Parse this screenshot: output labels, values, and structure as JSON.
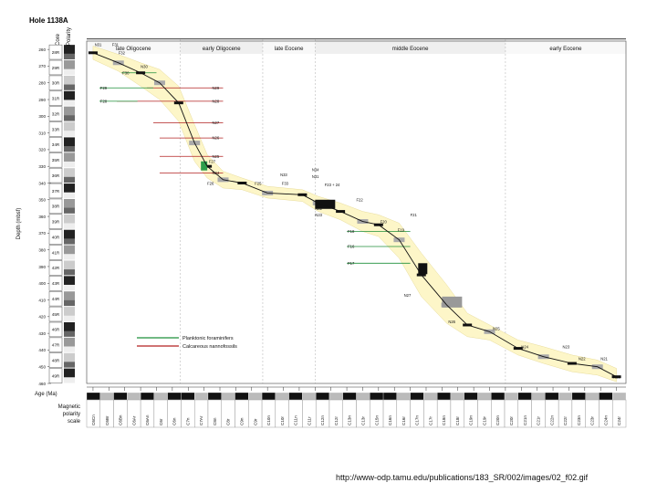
{
  "source_url": "http://www-odp.tamu.edu/publications/183_SR/002/images/02_f02.gif",
  "chart_data": {
    "type": "line",
    "title": "Hole 1138A",
    "xlabel": "Age (Ma)",
    "ylabel": "Depth (mbsf)",
    "xlim": [
      22.6,
      56.6
    ],
    "ylim": [
      460,
      255
    ],
    "grid": false,
    "x_ticks": [
      23,
      24,
      25,
      26,
      27,
      28,
      29,
      30,
      31,
      32,
      33,
      34,
      35,
      36,
      37,
      38,
      39,
      40,
      41,
      42,
      43,
      44,
      45,
      46,
      47,
      48,
      49,
      50,
      51,
      52,
      53,
      54,
      55,
      56
    ],
    "y_ticks": [
      260,
      270,
      280,
      290,
      300,
      310,
      320,
      330,
      340,
      350,
      360,
      370,
      380,
      390,
      400,
      410,
      420,
      430,
      440,
      450,
      460
    ],
    "core_header": "Core",
    "polarity_header": "Polarity",
    "cores": [
      "28R",
      "29R",
      "30R",
      "31R",
      "32R",
      "33R",
      "34R",
      "35R",
      "36R",
      "37R",
      "38R",
      "39R",
      "40R",
      "41R",
      "42R",
      "43R",
      "44R",
      "45R",
      "46R",
      "47R",
      "48R",
      "49R"
    ],
    "epochs": [
      {
        "name": "late Oligocene",
        "start": 22.6,
        "end": 28.5
      },
      {
        "name": "early Oligocene",
        "start": 28.5,
        "end": 33.7
      },
      {
        "name": "late Eocene",
        "start": 33.7,
        "end": 37.0
      },
      {
        "name": "middle Eocene",
        "start": 37.0,
        "end": 49.0
      },
      {
        "name": "early Eocene",
        "start": 49.0,
        "end": 56.6
      }
    ],
    "legend": [
      {
        "name": "Planktonic foraminifers",
        "color": "#1f8f3a"
      },
      {
        "name": "Calcareous nannofossils",
        "color": "#b22222"
      }
    ],
    "series": [
      {
        "name": "age-depth curve",
        "x": [
          23.0,
          24.6,
          26.0,
          27.2,
          28.4,
          29.4,
          30.2,
          31.2,
          32.4,
          34.0,
          36.2,
          37.2,
          38.6,
          40.0,
          41.0,
          42.3,
          43.7,
          45.3,
          46.6,
          48.0,
          49.8,
          51.4,
          53.2,
          54.8,
          56.0
        ],
        "y": [
          262,
          268,
          274,
          280,
          292,
          316,
          330,
          338,
          340,
          346,
          347,
          352,
          357,
          363,
          365,
          374,
          395,
          413,
          425,
          429,
          439,
          444,
          448,
          450,
          456
        ]
      }
    ],
    "envelope_upper": {
      "x": [
        23.0,
        24.6,
        26.0,
        27.2,
        28.4,
        29.4,
        30.2,
        31.2,
        32.4,
        34.0,
        36.2,
        37.2,
        38.6,
        40.0,
        41.0,
        42.3,
        43.7,
        45.3,
        46.6,
        48.0,
        49.8,
        51.4,
        53.2,
        54.8,
        56.0
      ],
      "y": [
        258,
        263,
        268,
        272,
        282,
        305,
        323,
        333,
        337,
        342,
        344,
        348,
        352,
        357,
        359,
        364,
        382,
        401,
        418,
        425,
        434,
        438,
        443,
        446,
        451
      ]
    },
    "envelope_lower": {
      "x": [
        23.0,
        24.6,
        26.0,
        27.2,
        28.4,
        29.4,
        30.2,
        31.2,
        32.4,
        34.0,
        36.2,
        37.2,
        38.6,
        40.0,
        41.0,
        42.3,
        43.7,
        45.3,
        46.6,
        48.0,
        49.8,
        51.4,
        53.2,
        54.8,
        56.0
      ],
      "y": [
        266,
        273,
        282,
        290,
        303,
        327,
        337,
        343,
        344,
        349,
        351,
        357,
        362,
        369,
        372,
        385,
        408,
        424,
        432,
        434,
        443,
        448,
        453,
        455,
        459
      ]
    },
    "datums": [
      {
        "label": "N29",
        "type": "nanno",
        "depth": 283,
        "x1": 26.4,
        "x2": 31.2
      },
      {
        "label": "N28",
        "type": "nanno",
        "depth": 291,
        "x1": 24.5,
        "x2": 31.2
      },
      {
        "label": "N27",
        "type": "nanno",
        "depth": 304,
        "x1": 26.8,
        "x2": 31.2
      },
      {
        "label": "N26",
        "type": "nanno",
        "depth": 313,
        "x1": 27.2,
        "x2": 31.2
      },
      {
        "label": "N25",
        "type": "nanno",
        "depth": 324,
        "x1": 27.2,
        "x2": 31.2
      },
      {
        "label": "N24",
        "type": "nanno",
        "depth": 334,
        "x1": 27.2,
        "x2": 31.2
      },
      {
        "label": "F29",
        "type": "foram",
        "depth": 283,
        "x1": 23.4,
        "x2": 26.8
      },
      {
        "label": "F30",
        "type": "foram",
        "depth": 274,
        "x1": 24.8,
        "x2": 27.0
      },
      {
        "label": "F28",
        "type": "foram",
        "depth": 291,
        "x1": 23.4,
        "x2": 25.8
      },
      {
        "label": "F18",
        "type": "foram",
        "depth": 369,
        "x1": 39.0,
        "x2": 43.0
      },
      {
        "label": "F16",
        "type": "foram",
        "depth": 378,
        "x1": 39.0,
        "x2": 43.0
      },
      {
        "label": "F17",
        "type": "foram",
        "depth": 388,
        "x1": 39.0,
        "x2": 43.0
      }
    ],
    "point_labels": [
      {
        "label": "N31",
        "x": 23.1,
        "y": 258
      },
      {
        "label": "F31",
        "x": 24.2,
        "y": 258
      },
      {
        "label": "F32",
        "x": 24.6,
        "y": 263
      },
      {
        "label": "N30",
        "x": 26.0,
        "y": 271
      },
      {
        "label": "F27",
        "x": 30.3,
        "y": 328
      },
      {
        "label": "F26",
        "x": 30.2,
        "y": 341
      },
      {
        "label": "F25",
        "x": 33.2,
        "y": 341
      },
      {
        "label": "N33",
        "x": 34.8,
        "y": 336
      },
      {
        "label": "F33",
        "x": 34.9,
        "y": 341
      },
      {
        "label": "N34",
        "x": 36.8,
        "y": 333
      },
      {
        "label": "N31",
        "x": 36.8,
        "y": 337
      },
      {
        "label": "F23 + 24",
        "x": 37.6,
        "y": 342
      },
      {
        "label": "F22",
        "x": 39.6,
        "y": 351
      },
      {
        "label": "N22",
        "x": 37.0,
        "y": 356
      },
      {
        "label": "N23",
        "x": 37.0,
        "y": 360
      },
      {
        "label": "F21",
        "x": 43.0,
        "y": 360
      },
      {
        "label": "F20",
        "x": 41.1,
        "y": 364
      },
      {
        "label": "F19",
        "x": 42.2,
        "y": 369
      },
      {
        "label": "N27",
        "x": 42.6,
        "y": 408
      },
      {
        "label": "N26",
        "x": 45.4,
        "y": 424
      },
      {
        "label": "N25",
        "x": 48.2,
        "y": 428
      },
      {
        "label": "N24",
        "x": 50.0,
        "y": 439
      },
      {
        "label": "N23",
        "x": 52.6,
        "y": 439
      },
      {
        "label": "N22",
        "x": 53.6,
        "y": 446
      },
      {
        "label": "N21",
        "x": 55.0,
        "y": 446
      },
      {
        "label": "N20",
        "x": 55.8,
        "y": 457
      }
    ],
    "polarity_chrons": [
      "C6Cn",
      "C6Br",
      "C6Bn",
      "C6Ar",
      "C6An",
      "C6r",
      "C6n",
      "C7n",
      "C7Ar",
      "C8n",
      "C8r",
      "C9n",
      "C9r",
      "C10n",
      "C10r",
      "C11n",
      "C11r",
      "C12n",
      "C12r",
      "C13n",
      "C13r",
      "C15n",
      "C16n",
      "C16r",
      "C17n",
      "C17r",
      "C18n",
      "C18r",
      "C19n",
      "C19r",
      "C20n",
      "C20r",
      "C21n",
      "C21r",
      "C22n",
      "C22r",
      "C23n",
      "C23r",
      "C24n",
      "C24r"
    ],
    "polarity_scale_label": [
      "Magnetic",
      "polarity",
      "scale"
    ]
  }
}
